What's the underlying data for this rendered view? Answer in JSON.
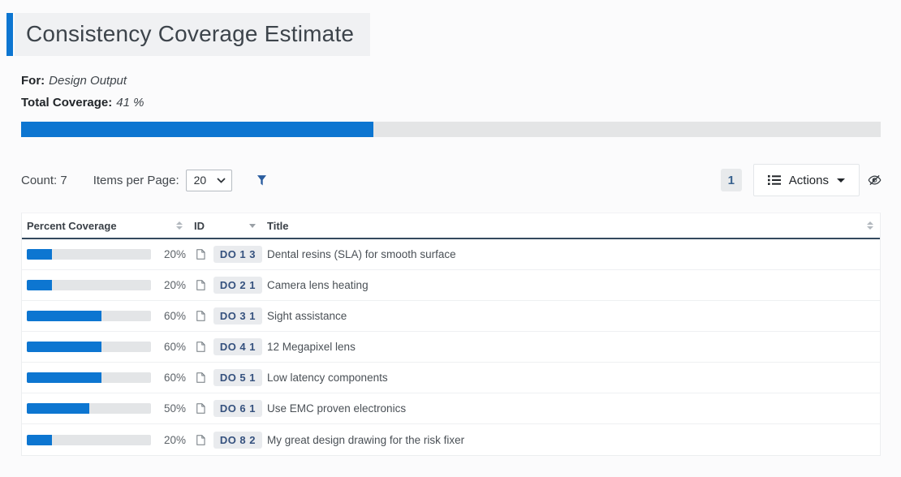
{
  "page": {
    "title": "Consistency Coverage Estimate",
    "for_label": "For:",
    "for_value": "Design Output",
    "total_label": "Total Coverage:",
    "total_value": "41 %",
    "total_percent": 41
  },
  "toolbar": {
    "count_text": "Count: 7",
    "items_per_page_label": "Items per Page:",
    "items_per_page_value": "20",
    "page_number": "1",
    "actions_label": "Actions"
  },
  "table": {
    "columns": [
      "Percent Coverage",
      "ID",
      "Title"
    ],
    "rows": [
      {
        "percent": 20,
        "percent_label": "20%",
        "id": "DO 1 3",
        "title": "Dental resins (SLA) for smooth surface"
      },
      {
        "percent": 20,
        "percent_label": "20%",
        "id": "DO 2 1",
        "title": "Camera lens heating"
      },
      {
        "percent": 60,
        "percent_label": "60%",
        "id": "DO 3 1",
        "title": "Sight assistance"
      },
      {
        "percent": 60,
        "percent_label": "60%",
        "id": "DO 4 1",
        "title": "12 Megapixel lens"
      },
      {
        "percent": 60,
        "percent_label": "60%",
        "id": "DO 5 1",
        "title": "Low latency components"
      },
      {
        "percent": 50,
        "percent_label": "50%",
        "id": "DO 6 1",
        "title": "Use EMC proven electronics"
      },
      {
        "percent": 20,
        "percent_label": "20%",
        "id": "DO 8 2",
        "title": "My great design drawing for the risk fixer"
      }
    ]
  },
  "icons": {
    "filter": "filter-funnel-icon",
    "actions_list": "list-icon",
    "visibility": "eye-slash-icon",
    "document": "document-icon"
  },
  "colors": {
    "accent_blue": "#0d76d1",
    "badge_text": "#35517e",
    "header_border": "#34495e"
  }
}
